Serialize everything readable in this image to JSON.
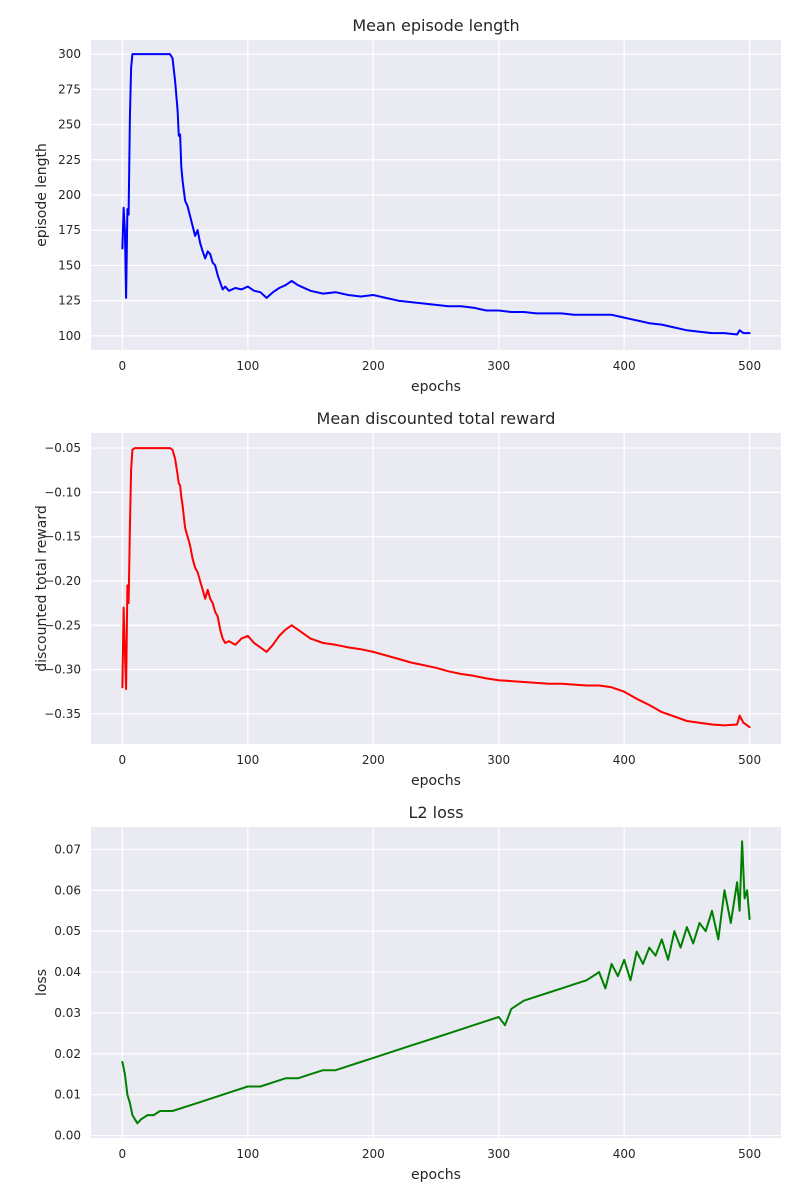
{
  "colors": {
    "figure_background": "#ffffff",
    "plot_background": "#eaeaf2",
    "grid": "#ffffff",
    "text": "#262626"
  },
  "chart_data": [
    {
      "type": "line",
      "title": "Mean episode length",
      "xlabel": "epochs",
      "ylabel": "episode length",
      "xlim": [
        -25,
        525
      ],
      "ylim": [
        90,
        310
      ],
      "xticks": [
        0,
        100,
        200,
        300,
        400,
        500
      ],
      "yticks": [
        100,
        125,
        150,
        175,
        200,
        225,
        250,
        275,
        300
      ],
      "ytick_labels": [
        "100",
        "125",
        "150",
        "175",
        "200",
        "225",
        "250",
        "275",
        "300"
      ],
      "grid": true,
      "series": [
        {
          "color": "#0000ff",
          "x": [
            0,
            1,
            2,
            3,
            4,
            5,
            6,
            7,
            8,
            10,
            12,
            15,
            20,
            25,
            30,
            35,
            38,
            40,
            42,
            44,
            45,
            46,
            47,
            48,
            50,
            52,
            54,
            56,
            58,
            60,
            62,
            64,
            66,
            68,
            70,
            72,
            74,
            76,
            78,
            80,
            82,
            85,
            90,
            95,
            100,
            105,
            110,
            115,
            120,
            125,
            130,
            135,
            140,
            150,
            160,
            170,
            180,
            190,
            200,
            210,
            220,
            230,
            240,
            250,
            260,
            270,
            280,
            290,
            300,
            310,
            320,
            330,
            340,
            350,
            360,
            370,
            380,
            390,
            400,
            410,
            420,
            430,
            440,
            450,
            460,
            470,
            480,
            490,
            492,
            495,
            500
          ],
          "y": [
            162,
            191,
            175,
            127,
            190,
            186,
            255,
            290,
            300,
            300,
            300,
            300,
            300,
            300,
            300,
            300,
            300,
            297,
            281,
            260,
            242,
            243,
            220,
            210,
            196,
            192,
            185,
            178,
            171,
            175,
            166,
            160,
            155,
            160,
            158,
            152,
            150,
            143,
            138,
            133,
            135,
            132,
            134,
            133,
            135,
            132,
            131,
            127,
            131,
            134,
            136,
            139,
            136,
            132,
            130,
            131,
            129,
            128,
            129,
            127,
            125,
            124,
            123,
            122,
            121,
            121,
            120,
            118,
            118,
            117,
            117,
            116,
            116,
            116,
            115,
            115,
            115,
            115,
            113,
            111,
            109,
            108,
            106,
            104,
            103,
            102,
            102,
            101,
            104,
            102,
            102
          ]
        }
      ]
    },
    {
      "type": "line",
      "title": "Mean discounted total reward",
      "xlabel": "epochs",
      "ylabel": "discounted total reward",
      "xlim": [
        -25,
        525
      ],
      "ylim": [
        -0.384,
        -0.033
      ],
      "xticks": [
        0,
        100,
        200,
        300,
        400,
        500
      ],
      "yticks": [
        -0.35,
        -0.3,
        -0.25,
        -0.2,
        -0.15,
        -0.1,
        -0.05
      ],
      "ytick_labels": [
        "−0.35",
        "−0.30",
        "−0.25",
        "−0.20",
        "−0.15",
        "−0.10",
        "−0.05"
      ],
      "grid": true,
      "series": [
        {
          "color": "#ff0000",
          "x": [
            0,
            1,
            2,
            3,
            4,
            5,
            6,
            7,
            8,
            10,
            12,
            15,
            20,
            25,
            30,
            35,
            38,
            40,
            42,
            44,
            45,
            46,
            47,
            48,
            50,
            52,
            54,
            56,
            58,
            60,
            62,
            64,
            66,
            68,
            70,
            72,
            74,
            76,
            78,
            80,
            82,
            85,
            90,
            95,
            100,
            105,
            110,
            115,
            120,
            125,
            130,
            135,
            140,
            150,
            160,
            170,
            180,
            190,
            200,
            210,
            220,
            230,
            240,
            250,
            260,
            270,
            280,
            290,
            300,
            310,
            320,
            330,
            340,
            350,
            360,
            370,
            380,
            390,
            400,
            410,
            420,
            430,
            440,
            450,
            460,
            470,
            480,
            490,
            492,
            495,
            500
          ],
          "y": [
            -0.32,
            -0.23,
            -0.28,
            -0.322,
            -0.205,
            -0.225,
            -0.14,
            -0.075,
            -0.052,
            -0.05,
            -0.05,
            -0.05,
            -0.05,
            -0.05,
            -0.05,
            -0.05,
            -0.05,
            -0.052,
            -0.062,
            -0.08,
            -0.09,
            -0.092,
            -0.105,
            -0.115,
            -0.14,
            -0.15,
            -0.16,
            -0.175,
            -0.185,
            -0.19,
            -0.2,
            -0.21,
            -0.22,
            -0.21,
            -0.22,
            -0.225,
            -0.235,
            -0.24,
            -0.255,
            -0.265,
            -0.27,
            -0.268,
            -0.272,
            -0.265,
            -0.262,
            -0.27,
            -0.275,
            -0.28,
            -0.272,
            -0.262,
            -0.255,
            -0.25,
            -0.255,
            -0.265,
            -0.27,
            -0.272,
            -0.275,
            -0.277,
            -0.28,
            -0.284,
            -0.288,
            -0.292,
            -0.295,
            -0.298,
            -0.302,
            -0.305,
            -0.307,
            -0.31,
            -0.312,
            -0.313,
            -0.314,
            -0.315,
            -0.316,
            -0.316,
            -0.317,
            -0.318,
            -0.318,
            -0.32,
            -0.325,
            -0.333,
            -0.34,
            -0.348,
            -0.353,
            -0.358,
            -0.36,
            -0.362,
            -0.363,
            -0.362,
            -0.352,
            -0.36,
            -0.365
          ]
        }
      ]
    },
    {
      "type": "line",
      "title": "L2 loss",
      "xlabel": "epochs",
      "ylabel": "loss",
      "xlim": [
        -25,
        525
      ],
      "ylim": [
        -0.0006,
        0.0755
      ],
      "xticks": [
        0,
        100,
        200,
        300,
        400,
        500
      ],
      "yticks": [
        0,
        0.01,
        0.02,
        0.03,
        0.04,
        0.05,
        0.06,
        0.07
      ],
      "ytick_labels": [
        "0.00",
        "0.01",
        "0.02",
        "0.03",
        "0.04",
        "0.05",
        "0.06",
        "0.07"
      ],
      "grid": true,
      "series": [
        {
          "color": "#008000",
          "x": [
            0,
            2,
            4,
            6,
            8,
            10,
            12,
            15,
            20,
            25,
            30,
            40,
            50,
            60,
            70,
            80,
            90,
            100,
            110,
            120,
            130,
            140,
            150,
            160,
            170,
            180,
            190,
            200,
            210,
            220,
            230,
            240,
            250,
            260,
            270,
            280,
            290,
            300,
            305,
            310,
            320,
            330,
            340,
            350,
            360,
            370,
            380,
            385,
            390,
            395,
            400,
            405,
            410,
            415,
            420,
            425,
            430,
            435,
            440,
            445,
            450,
            455,
            460,
            465,
            470,
            475,
            480,
            485,
            490,
            492,
            494,
            496,
            498,
            500
          ],
          "y": [
            0.018,
            0.015,
            0.01,
            0.008,
            0.005,
            0.004,
            0.003,
            0.004,
            0.005,
            0.005,
            0.006,
            0.006,
            0.007,
            0.008,
            0.009,
            0.01,
            0.011,
            0.012,
            0.012,
            0.013,
            0.014,
            0.014,
            0.015,
            0.016,
            0.016,
            0.017,
            0.018,
            0.019,
            0.02,
            0.021,
            0.022,
            0.023,
            0.024,
            0.025,
            0.026,
            0.027,
            0.028,
            0.029,
            0.027,
            0.031,
            0.033,
            0.034,
            0.035,
            0.036,
            0.037,
            0.038,
            0.04,
            0.036,
            0.042,
            0.039,
            0.043,
            0.038,
            0.045,
            0.042,
            0.046,
            0.044,
            0.048,
            0.043,
            0.05,
            0.046,
            0.051,
            0.047,
            0.052,
            0.05,
            0.055,
            0.048,
            0.06,
            0.052,
            0.062,
            0.055,
            0.072,
            0.058,
            0.06,
            0.053
          ]
        }
      ]
    }
  ]
}
